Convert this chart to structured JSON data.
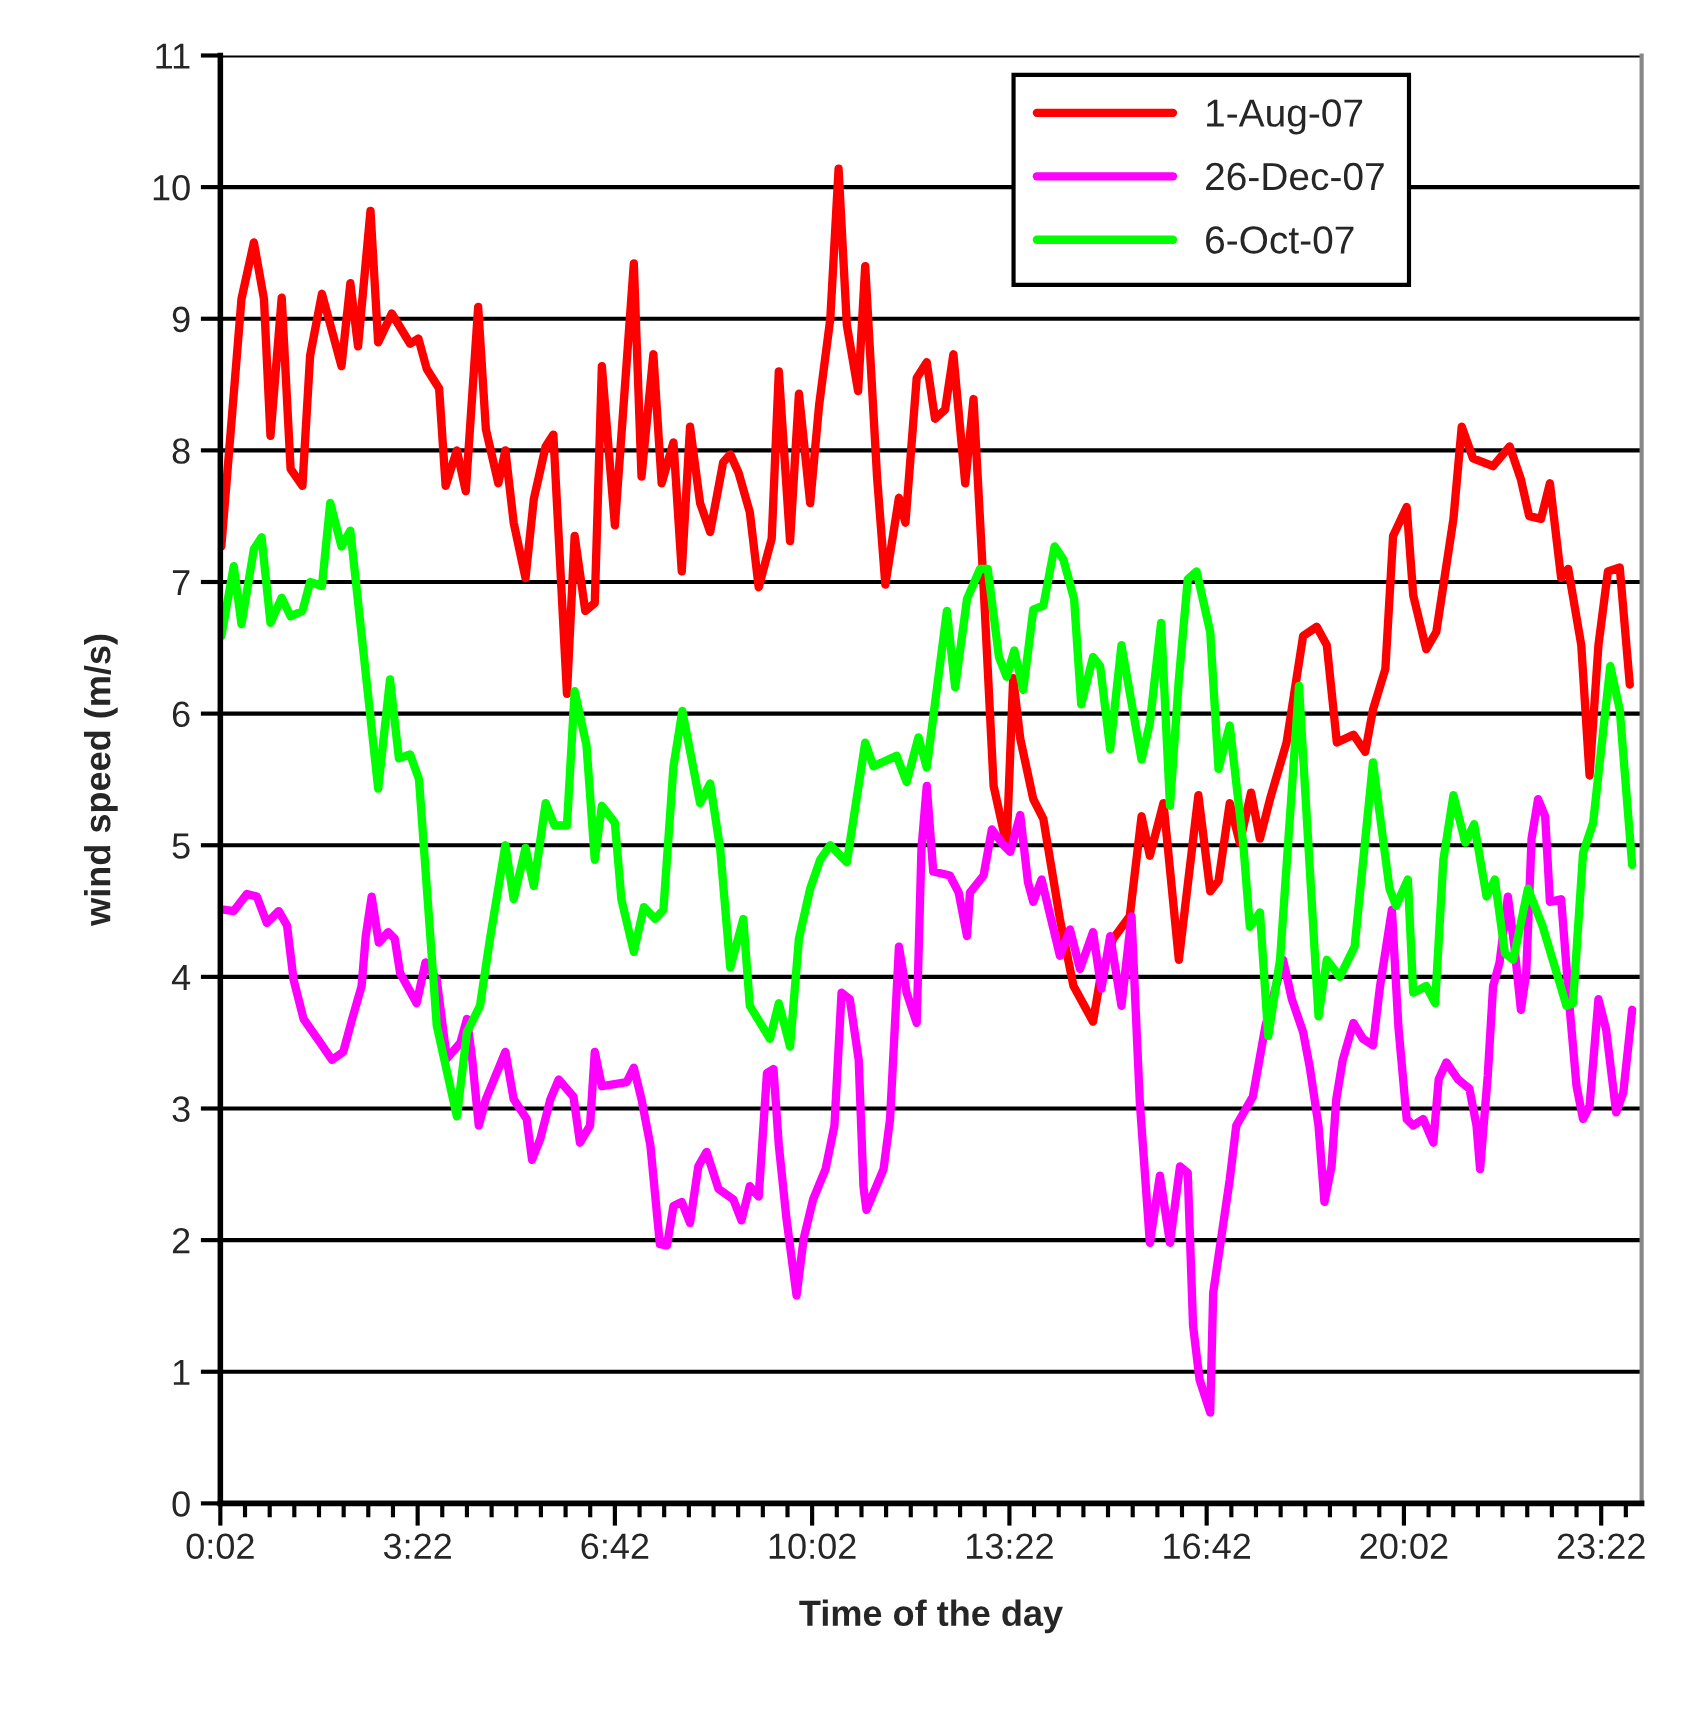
{
  "chart_data": {
    "type": "line",
    "xlabel": "Time of the day",
    "ylabel": "wind speed (m/s)",
    "xlim": [
      0.033,
      24.05
    ],
    "ylim": [
      0,
      11
    ],
    "yticks": [
      0,
      1,
      2,
      3,
      4,
      5,
      6,
      7,
      8,
      9,
      10,
      11
    ],
    "xticks": [
      {
        "value": 0.033,
        "label": "0:02"
      },
      {
        "value": 0.45,
        "label": null
      },
      {
        "value": 0.867,
        "label": null
      },
      {
        "value": 1.283,
        "label": null
      },
      {
        "value": 1.7,
        "label": null
      },
      {
        "value": 2.117,
        "label": null
      },
      {
        "value": 2.533,
        "label": null
      },
      {
        "value": 2.95,
        "label": null
      },
      {
        "value": 3.367,
        "label": "3:22"
      },
      {
        "value": 3.783,
        "label": null
      },
      {
        "value": 4.2,
        "label": null
      },
      {
        "value": 4.617,
        "label": null
      },
      {
        "value": 5.033,
        "label": null
      },
      {
        "value": 5.45,
        "label": null
      },
      {
        "value": 5.867,
        "label": null
      },
      {
        "value": 6.283,
        "label": null
      },
      {
        "value": 6.7,
        "label": "6:42"
      },
      {
        "value": 7.117,
        "label": null
      },
      {
        "value": 7.533,
        "label": null
      },
      {
        "value": 7.95,
        "label": null
      },
      {
        "value": 8.367,
        "label": null
      },
      {
        "value": 8.783,
        "label": null
      },
      {
        "value": 9.2,
        "label": null
      },
      {
        "value": 9.617,
        "label": null
      },
      {
        "value": 10.033,
        "label": "10:02"
      },
      {
        "value": 10.45,
        "label": null
      },
      {
        "value": 10.867,
        "label": null
      },
      {
        "value": 11.283,
        "label": null
      },
      {
        "value": 11.7,
        "label": null
      },
      {
        "value": 12.117,
        "label": null
      },
      {
        "value": 12.533,
        "label": null
      },
      {
        "value": 12.95,
        "label": null
      },
      {
        "value": 13.367,
        "label": "13:22"
      },
      {
        "value": 13.783,
        "label": null
      },
      {
        "value": 14.2,
        "label": null
      },
      {
        "value": 14.617,
        "label": null
      },
      {
        "value": 15.033,
        "label": null
      },
      {
        "value": 15.45,
        "label": null
      },
      {
        "value": 15.867,
        "label": null
      },
      {
        "value": 16.283,
        "label": null
      },
      {
        "value": 16.7,
        "label": "16:42"
      },
      {
        "value": 17.117,
        "label": null
      },
      {
        "value": 17.533,
        "label": null
      },
      {
        "value": 17.95,
        "label": null
      },
      {
        "value": 18.367,
        "label": null
      },
      {
        "value": 18.783,
        "label": null
      },
      {
        "value": 19.2,
        "label": null
      },
      {
        "value": 19.617,
        "label": null
      },
      {
        "value": 20.033,
        "label": "20:02"
      },
      {
        "value": 20.45,
        "label": null
      },
      {
        "value": 20.867,
        "label": null
      },
      {
        "value": 21.283,
        "label": null
      },
      {
        "value": 21.7,
        "label": null
      },
      {
        "value": 22.117,
        "label": null
      },
      {
        "value": 22.533,
        "label": null
      },
      {
        "value": 22.95,
        "label": null
      },
      {
        "value": 23.367,
        "label": "23:22"
      },
      {
        "value": 23.783,
        "label": null
      }
    ],
    "grid": "y",
    "legend": "top right",
    "marker": "none",
    "line_style": "solid",
    "series": [
      {
        "name": "1-Aug-07",
        "color": "#ff0000",
        "x": [
          0.05,
          0.39,
          0.6,
          0.77,
          0.88,
          1.07,
          1.22,
          1.42,
          1.55,
          1.75,
          2.08,
          2.23,
          2.36,
          2.57,
          2.7,
          2.93,
          3.24,
          3.38,
          3.52,
          3.73,
          3.84,
          4.03,
          4.18,
          4.39,
          4.52,
          4.73,
          4.85,
          4.99,
          5.19,
          5.33,
          5.53,
          5.66,
          5.89,
          6.02,
          6.2,
          6.36,
          6.48,
          6.7,
          7.02,
          7.15,
          7.35,
          7.49,
          7.69,
          7.83,
          7.97,
          8.14,
          8.31,
          8.53,
          8.65,
          8.79,
          8.98,
          9.13,
          9.35,
          9.47,
          9.66,
          9.81,
          10.0,
          10.15,
          10.34,
          10.48,
          10.62,
          10.81,
          10.93,
          11.13,
          11.27,
          11.5,
          11.61,
          11.8,
          11.97,
          12.11,
          12.28,
          12.42,
          12.62,
          12.76,
          12.93,
          13.1,
          13.32,
          13.43,
          13.55,
          13.77,
          13.94,
          14.22,
          14.45,
          14.78,
          14.9,
          15.12,
          15.4,
          15.6,
          15.74,
          15.97,
          16.23,
          16.56,
          16.76,
          16.9,
          17.09,
          17.26,
          17.45,
          17.6,
          17.77,
          18.05,
          18.33,
          18.56,
          18.73,
          18.9,
          19.18,
          19.38,
          19.51,
          19.72,
          19.85,
          20.08,
          20.19,
          20.41,
          20.58,
          20.87,
          21.01,
          21.2,
          21.54,
          21.82,
          22.01,
          22.15,
          22.35,
          22.5,
          22.69,
          22.81,
          23.03,
          23.17,
          23.32,
          23.48,
          23.68,
          23.85
        ],
        "values": [
          7.27,
          9.15,
          9.58,
          9.15,
          8.11,
          9.16,
          7.86,
          7.73,
          8.72,
          9.19,
          8.64,
          9.27,
          8.79,
          9.82,
          8.82,
          9.04,
          8.81,
          8.85,
          8.62,
          8.47,
          7.73,
          8.0,
          7.69,
          9.09,
          8.16,
          7.75,
          8.0,
          7.45,
          7.03,
          7.63,
          8.03,
          8.12,
          6.15,
          7.35,
          6.78,
          6.84,
          8.64,
          7.43,
          9.42,
          7.8,
          8.73,
          7.75,
          8.06,
          7.08,
          8.18,
          7.6,
          7.38,
          7.91,
          7.97,
          7.83,
          7.53,
          6.96,
          7.33,
          8.6,
          7.31,
          8.43,
          7.6,
          8.34,
          9.0,
          10.14,
          8.95,
          8.45,
          9.4,
          7.8,
          6.98,
          7.64,
          7.45,
          8.55,
          8.67,
          8.24,
          8.31,
          8.73,
          7.75,
          8.39,
          6.97,
          5.45,
          5.0,
          6.27,
          5.81,
          5.35,
          5.2,
          4.44,
          3.93,
          3.66,
          3.98,
          4.29,
          4.46,
          5.22,
          4.92,
          5.32,
          4.13,
          5.38,
          4.65,
          4.73,
          5.32,
          5.02,
          5.4,
          5.05,
          5.35,
          5.78,
          6.59,
          6.66,
          6.52,
          5.78,
          5.84,
          5.71,
          6.03,
          6.34,
          7.35,
          7.57,
          6.9,
          6.49,
          6.62,
          7.48,
          8.18,
          7.94,
          7.88,
          8.03,
          7.78,
          7.5,
          7.48,
          7.75,
          7.03,
          7.1,
          6.52,
          5.53,
          6.52,
          7.08,
          7.11,
          6.22
        ]
      },
      {
        "name": "26-Dec-07",
        "color": "#ff00ff",
        "x": [
          0.09,
          0.26,
          0.48,
          0.65,
          0.82,
          1.02,
          1.16,
          1.27,
          1.44,
          1.72,
          1.92,
          2.11,
          2.26,
          2.42,
          2.49,
          2.59,
          2.71,
          2.87,
          2.98,
          3.07,
          3.35,
          3.5,
          3.69,
          3.86,
          4.09,
          4.2,
          4.29,
          4.4,
          4.52,
          4.85,
          4.99,
          5.21,
          5.3,
          5.44,
          5.61,
          5.75,
          6.0,
          6.11,
          6.28,
          6.36,
          6.48,
          6.62,
          6.9,
          7.02,
          7.15,
          7.3,
          7.46,
          7.58,
          7.69,
          7.83,
          7.97,
          8.11,
          8.25,
          8.45,
          8.7,
          8.84,
          8.98,
          9.13,
          9.27,
          9.38,
          9.47,
          9.6,
          9.77,
          9.89,
          10.05,
          10.26,
          10.41,
          10.53,
          10.67,
          10.82,
          10.9,
          10.95,
          11.24,
          11.35,
          11.5,
          11.63,
          11.8,
          11.88,
          11.97,
          12.08,
          12.36,
          12.51,
          12.65,
          12.7,
          12.93,
          13.07,
          13.27,
          13.38,
          13.55,
          13.68,
          13.77,
          13.91,
          14.22,
          14.39,
          14.56,
          14.78,
          14.92,
          15.07,
          15.26,
          15.43,
          15.57,
          15.74,
          15.91,
          16.08,
          16.25,
          16.38,
          16.47,
          16.58,
          16.76,
          16.81,
          17.09,
          17.2,
          17.48,
          17.69,
          17.99,
          18.14,
          18.33,
          18.44,
          18.59,
          18.69,
          18.81,
          18.89,
          19.0,
          19.18,
          19.34,
          19.51,
          19.63,
          19.83,
          19.94,
          20.08,
          20.19,
          20.36,
          20.53,
          20.62,
          20.75,
          20.95,
          21.14,
          21.26,
          21.32,
          21.45,
          21.54,
          21.65,
          21.79,
          21.9,
          22.01,
          22.1,
          22.19,
          22.3,
          22.42,
          22.5,
          22.69,
          22.84,
          22.95,
          23.06,
          23.17,
          23.32,
          23.45,
          23.62,
          23.74,
          23.89
        ],
        "values": [
          4.51,
          4.5,
          4.63,
          4.61,
          4.41,
          4.5,
          4.39,
          3.98,
          3.68,
          3.5,
          3.37,
          3.43,
          3.68,
          3.93,
          4.31,
          4.61,
          4.26,
          4.34,
          4.29,
          4.03,
          3.8,
          4.11,
          3.98,
          3.38,
          3.5,
          3.68,
          3.37,
          2.87,
          3.07,
          3.43,
          3.07,
          2.92,
          2.61,
          2.77,
          3.07,
          3.22,
          3.09,
          2.74,
          2.87,
          3.43,
          3.17,
          3.18,
          3.2,
          3.31,
          3.07,
          2.72,
          1.97,
          1.96,
          2.26,
          2.29,
          2.13,
          2.56,
          2.67,
          2.39,
          2.31,
          2.15,
          2.41,
          2.33,
          3.27,
          3.3,
          2.72,
          2.16,
          1.58,
          2.01,
          2.31,
          2.54,
          2.87,
          3.88,
          3.83,
          3.37,
          2.41,
          2.23,
          2.54,
          2.92,
          4.23,
          3.88,
          3.65,
          4.97,
          5.45,
          4.8,
          4.77,
          4.64,
          4.31,
          4.64,
          4.77,
          5.12,
          5.0,
          4.95,
          5.23,
          4.72,
          4.57,
          4.74,
          4.16,
          4.36,
          4.06,
          4.34,
          3.91,
          4.31,
          3.78,
          4.46,
          3.05,
          1.98,
          2.49,
          1.98,
          2.56,
          2.51,
          1.35,
          0.94,
          0.69,
          1.6,
          2.46,
          2.87,
          3.09,
          3.62,
          4.13,
          3.83,
          3.58,
          3.32,
          2.87,
          2.29,
          2.56,
          3.07,
          3.37,
          3.65,
          3.53,
          3.48,
          3.93,
          4.51,
          3.62,
          2.92,
          2.87,
          2.92,
          2.74,
          3.22,
          3.35,
          3.22,
          3.15,
          2.87,
          2.54,
          3.25,
          3.93,
          4.11,
          4.61,
          4.23,
          3.75,
          4.03,
          5.05,
          5.35,
          5.22,
          4.57,
          4.59,
          3.73,
          3.17,
          2.92,
          3.02,
          3.83,
          3.6,
          2.97,
          3.12,
          3.75
        ]
      },
      {
        "name": "6-Oct-07",
        "color": "#00ff00",
        "x": [
          0.05,
          0.26,
          0.39,
          0.6,
          0.73,
          0.88,
          1.07,
          1.22,
          1.42,
          1.55,
          1.75,
          1.89,
          2.08,
          2.23,
          2.7,
          2.9,
          3.05,
          3.24,
          3.39,
          3.69,
          4.03,
          4.2,
          4.42,
          4.59,
          4.85,
          4.99,
          5.19,
          5.33,
          5.53,
          5.68,
          5.89,
          6.02,
          6.22,
          6.36,
          6.48,
          6.7,
          6.81,
          7.02,
          7.19,
          7.38,
          7.52,
          7.69,
          7.84,
          8.14,
          8.31,
          8.48,
          8.65,
          8.87,
          8.98,
          9.32,
          9.47,
          9.66,
          9.81,
          10.0,
          10.17,
          10.34,
          10.62,
          10.93,
          11.07,
          11.46,
          11.63,
          11.83,
          11.97,
          12.31,
          12.45,
          12.65,
          12.87,
          13.0,
          13.19,
          13.32,
          13.45,
          13.6,
          13.77,
          13.94,
          14.13,
          14.28,
          14.46,
          14.58,
          14.78,
          14.9,
          15.07,
          15.26,
          15.6,
          15.74,
          15.93,
          16.08,
          16.23,
          16.38,
          16.53,
          16.76,
          16.9,
          17.09,
          17.32,
          17.43,
          17.6,
          17.74,
          17.94,
          18.26,
          18.59,
          18.73,
          18.95,
          19.2,
          19.51,
          19.79,
          19.9,
          20.1,
          20.19,
          20.41,
          20.56,
          20.7,
          20.87,
          21.07,
          21.22,
          21.43,
          21.57,
          21.74,
          21.88,
          22.13,
          22.38,
          22.58,
          22.78,
          22.89,
          23.06,
          23.23,
          23.52,
          23.68,
          23.89
        ],
        "values": [
          6.59,
          7.12,
          6.68,
          7.25,
          7.34,
          6.69,
          6.88,
          6.74,
          6.78,
          7.0,
          6.97,
          7.6,
          7.27,
          7.39,
          5.43,
          6.26,
          5.66,
          5.69,
          5.5,
          3.63,
          2.94,
          3.58,
          3.78,
          4.29,
          5.0,
          4.59,
          4.98,
          4.69,
          5.32,
          5.15,
          5.15,
          6.17,
          5.76,
          4.89,
          5.3,
          5.17,
          4.59,
          4.19,
          4.53,
          4.44,
          4.51,
          5.6,
          6.02,
          5.32,
          5.47,
          4.97,
          4.07,
          4.44,
          3.78,
          3.53,
          3.8,
          3.47,
          4.29,
          4.67,
          4.89,
          5.0,
          4.87,
          5.78,
          5.6,
          5.68,
          5.48,
          5.82,
          5.59,
          6.78,
          6.2,
          6.87,
          7.1,
          7.1,
          6.43,
          6.28,
          6.48,
          6.18,
          6.79,
          6.82,
          7.27,
          7.17,
          6.87,
          6.07,
          6.43,
          6.36,
          5.73,
          6.52,
          5.65,
          5.93,
          6.69,
          5.3,
          6.26,
          7.02,
          7.08,
          6.62,
          5.58,
          5.91,
          5.0,
          4.38,
          4.49,
          3.55,
          4.13,
          6.21,
          3.7,
          4.13,
          4.0,
          4.23,
          5.63,
          4.67,
          4.54,
          4.74,
          3.88,
          3.93,
          3.8,
          4.89,
          5.38,
          5.02,
          5.16,
          4.61,
          4.74,
          4.18,
          4.13,
          4.67,
          4.38,
          4.08,
          3.78,
          3.8,
          4.94,
          5.17,
          6.36,
          6.03,
          4.85
        ]
      }
    ]
  }
}
